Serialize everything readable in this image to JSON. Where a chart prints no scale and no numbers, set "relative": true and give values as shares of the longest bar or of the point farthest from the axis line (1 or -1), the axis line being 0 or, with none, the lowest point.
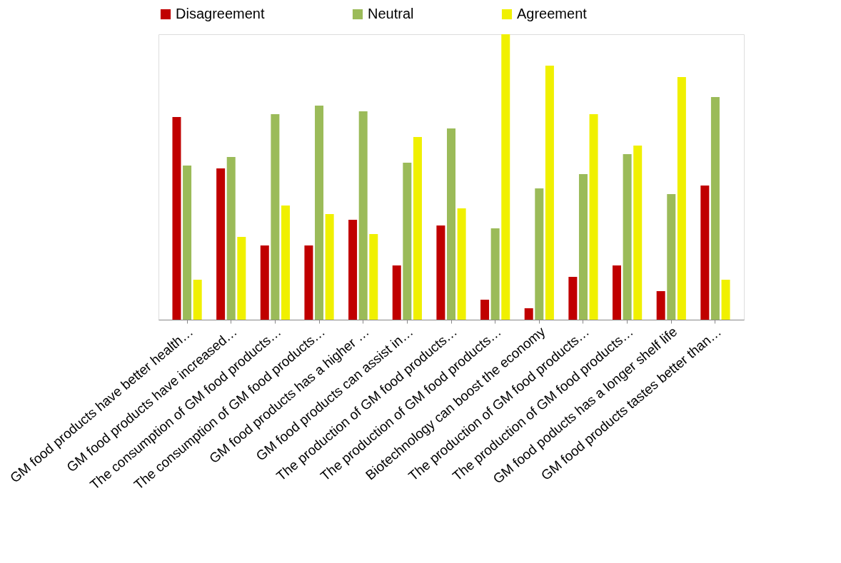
{
  "chart_data": {
    "type": "bar",
    "relative": true,
    "legend": "top",
    "grid": false,
    "categories": [
      "GM food products have better health…",
      "GM food products have increased…",
      "The consumption of GM food products…",
      "The consumption of GM food products…",
      "GM food products has a higher …",
      "GM food products can assist in…",
      "The production of GM food products…",
      "The production of GM food products…",
      "Biotechnology can boost the economy",
      "The production of GM food products…",
      "The production of GM food products…",
      "GM food poducts has a longer shelf life",
      "GM food products tastes better than…"
    ],
    "series": [
      {
        "name": "Disagreement",
        "color": "#c00000",
        "values": [
          0.71,
          0.53,
          0.26,
          0.26,
          0.35,
          0.19,
          0.33,
          0.07,
          0.04,
          0.15,
          0.19,
          0.1,
          0.47
        ]
      },
      {
        "name": "Neutral",
        "color": "#9bbb59",
        "values": [
          0.54,
          0.57,
          0.72,
          0.75,
          0.73,
          0.55,
          0.67,
          0.32,
          0.46,
          0.51,
          0.58,
          0.44,
          0.78
        ]
      },
      {
        "name": "Agreement",
        "color": "#f0f000",
        "values": [
          0.14,
          0.29,
          0.4,
          0.37,
          0.3,
          0.64,
          0.39,
          1.0,
          0.89,
          0.72,
          0.61,
          0.85,
          0.14
        ]
      }
    ]
  }
}
